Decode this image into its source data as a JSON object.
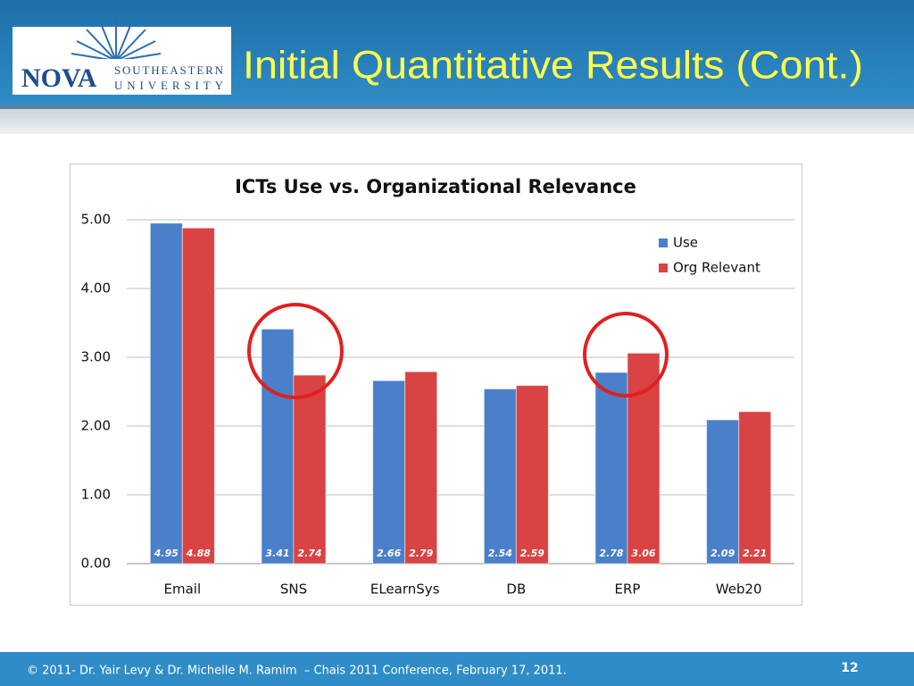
{
  "header": {
    "logo_name": "NOVA",
    "logo_line1": "SOUTHEASTERN",
    "logo_line2": "UNIVERSITY",
    "title": "Initial Quantitative Results (Cont.)"
  },
  "chart_data": {
    "type": "bar",
    "title": "ICTs Use vs. Organizational Relevance",
    "categories": [
      "Email",
      "SNS",
      "ELearnSys",
      "DB",
      "ERP",
      "Web20"
    ],
    "series": [
      {
        "name": "Use",
        "color": "#4a7fc9",
        "values": [
          4.95,
          3.41,
          2.66,
          2.54,
          2.78,
          2.09
        ]
      },
      {
        "name": "Org Relevant",
        "color": "#d94343",
        "values": [
          4.88,
          2.74,
          2.79,
          2.59,
          3.06,
          2.21
        ]
      }
    ],
    "ylim": [
      0,
      5
    ],
    "yticks": [
      {
        "value": 0,
        "label": "0.00"
      },
      {
        "value": 1,
        "label": "1.00"
      },
      {
        "value": 2,
        "label": "2.00"
      },
      {
        "value": 3,
        "label": "3.00"
      },
      {
        "value": 4,
        "label": "4.00"
      },
      {
        "value": 5,
        "label": "5.00"
      }
    ],
    "grid": true,
    "legend": "upper right"
  },
  "footer": {
    "text": "© 2011- Dr. Yair Levy & Dr. Michelle M. Ramim  – Chais 2011 Conference, February 17, 2011.",
    "page": "12"
  }
}
